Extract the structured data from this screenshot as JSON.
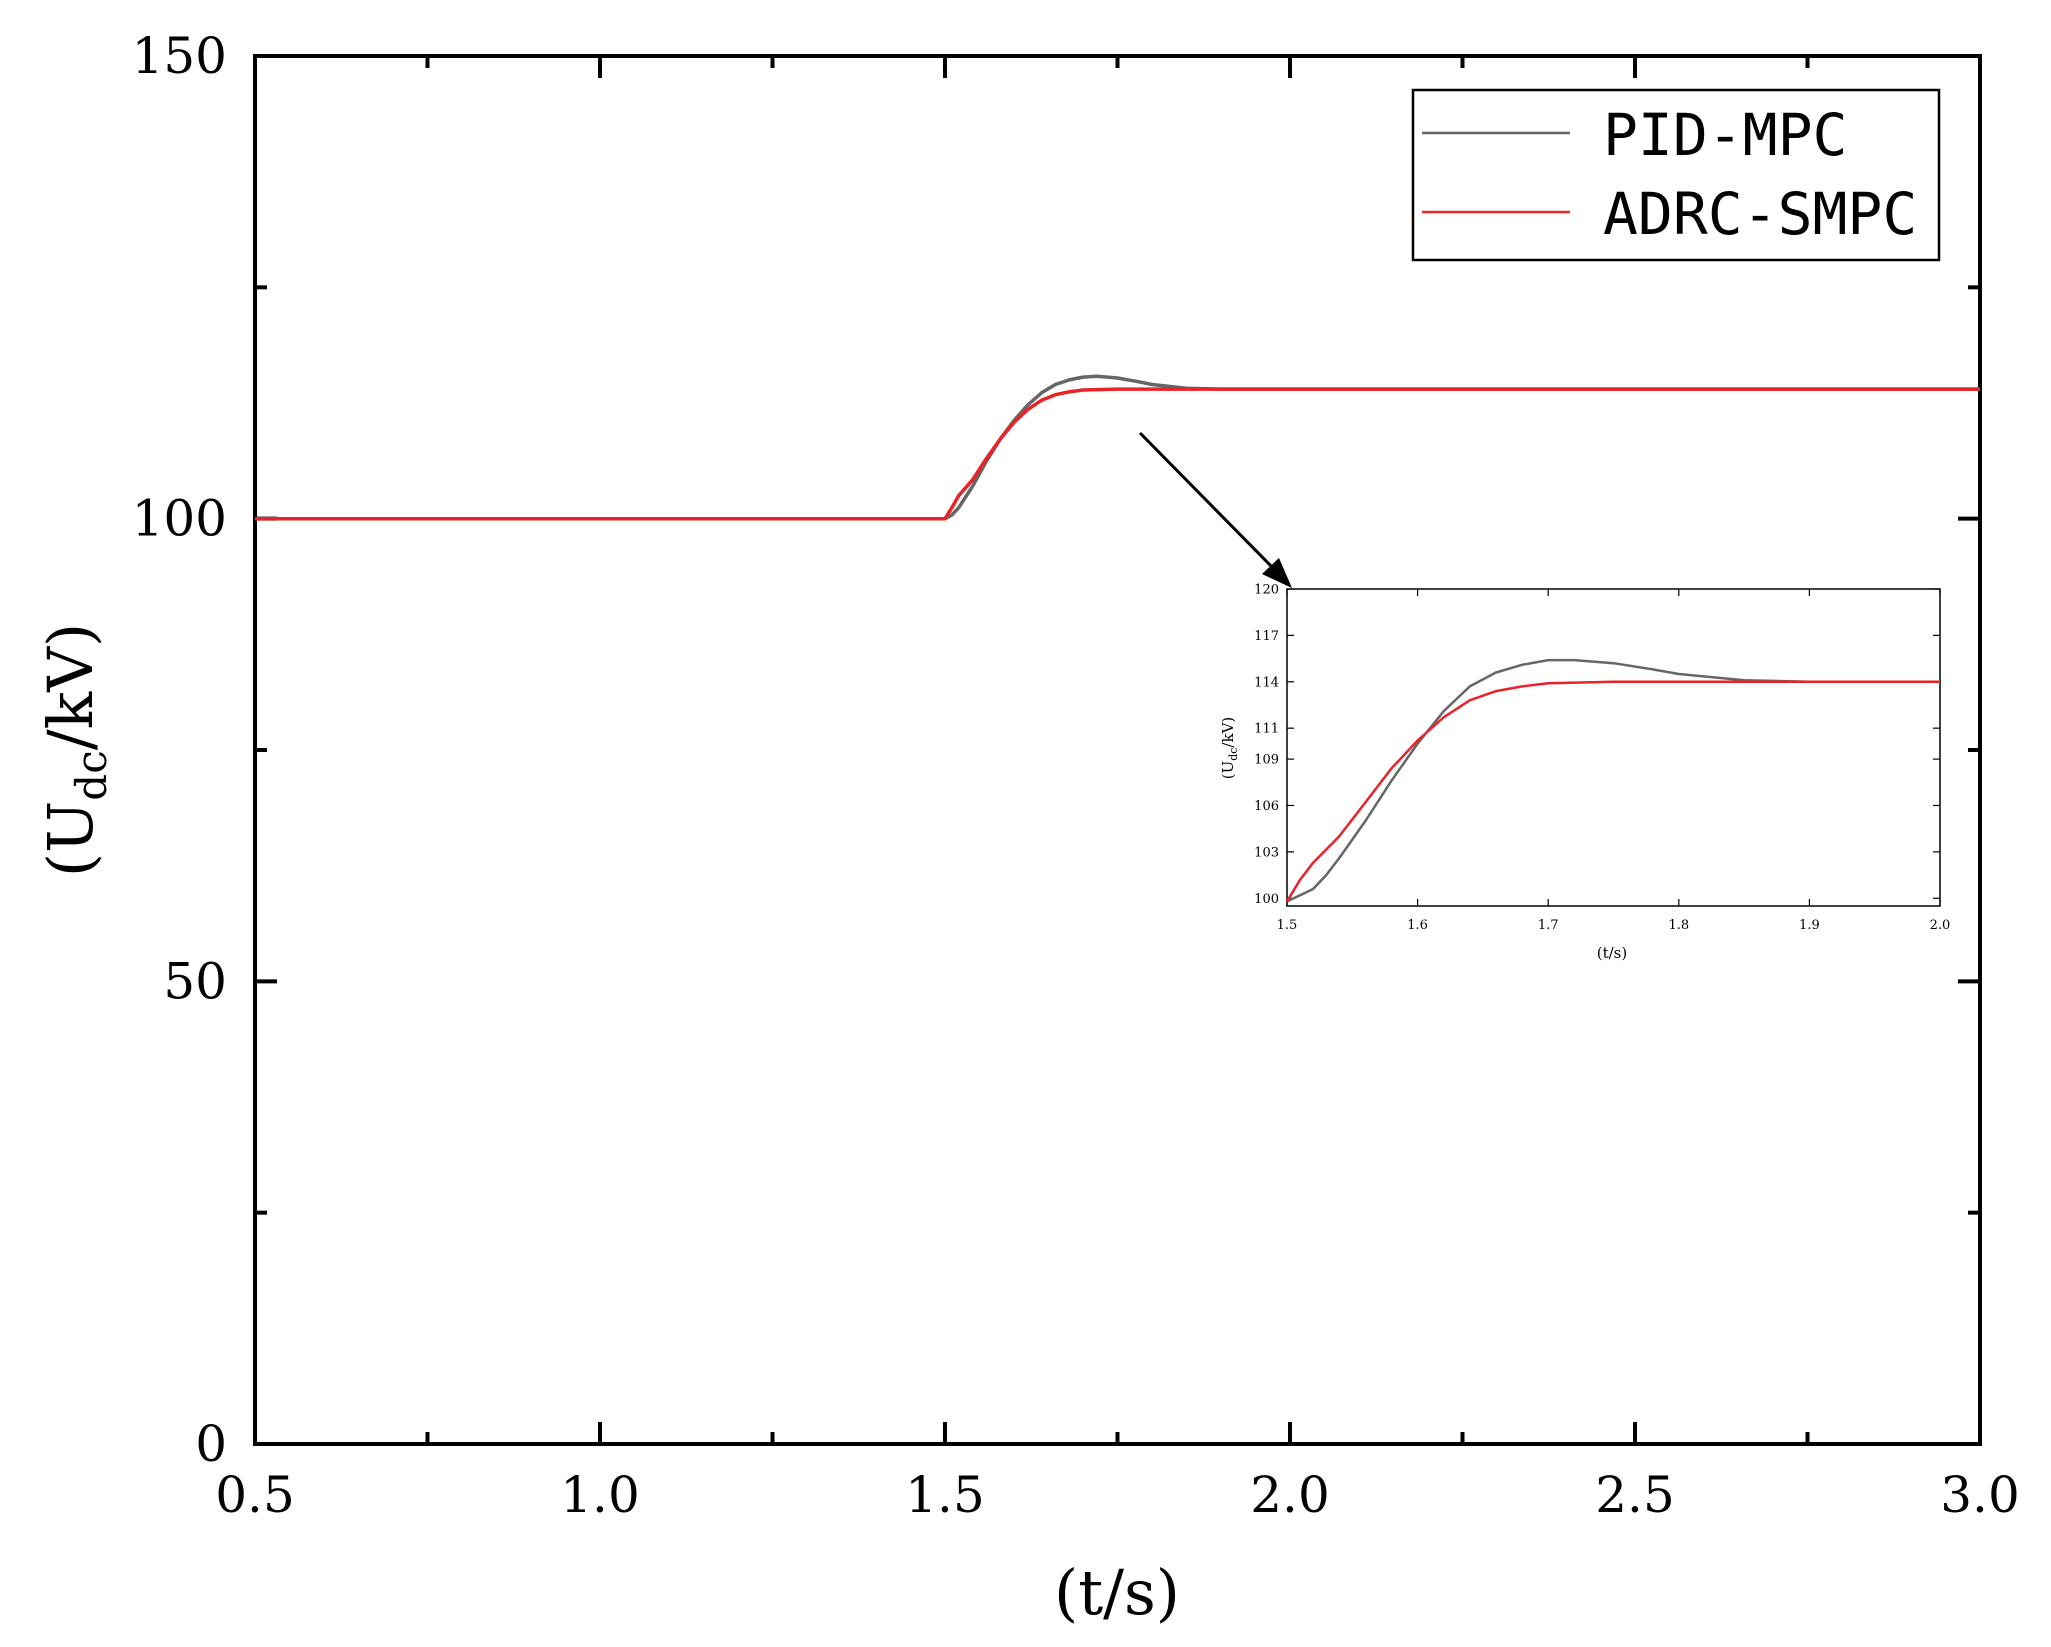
{
  "chart_data": [
    {
      "type": "line",
      "xlabel": "(t/s)",
      "ylabel_main": "(U",
      "ylabel_sub": "dc",
      "ylabel_tail": "/kV)",
      "xlim": [
        0.5,
        3.0
      ],
      "ylim": [
        0,
        150
      ],
      "x_ticks": [
        0.5,
        1.0,
        1.5,
        2.0,
        2.5,
        3.0
      ],
      "x_tick_labels": [
        "0.5",
        "1.0",
        "1.5",
        "2.0",
        "2.5",
        "3.0"
      ],
      "y_ticks": [
        0,
        50,
        100,
        150
      ],
      "y_tick_labels": [
        "0",
        "50",
        "100",
        "150"
      ],
      "y_minor_ticks": [
        25,
        75,
        125
      ],
      "x_minor_ticks": [
        0.75,
        1.25,
        1.75,
        2.25,
        2.75
      ],
      "grid": false,
      "legend_position": "top-right",
      "series": [
        {
          "name": "PID-MPC",
          "color": "#666666",
          "x": [
            0.5,
            1.5,
            1.51,
            1.52,
            1.54,
            1.56,
            1.58,
            1.6,
            1.62,
            1.64,
            1.66,
            1.68,
            1.7,
            1.72,
            1.75,
            1.78,
            1.8,
            1.85,
            1.9,
            2.0,
            2.5,
            3.0
          ],
          "y": [
            100,
            100,
            100.4,
            101.2,
            103.5,
            106.2,
            108.6,
            110.6,
            112.3,
            113.6,
            114.5,
            115.0,
            115.3,
            115.4,
            115.2,
            114.8,
            114.5,
            114.1,
            114.0,
            114.0,
            114.0,
            114.0
          ]
        },
        {
          "name": "ADRC-SMPC",
          "color": "#e8232a",
          "x": [
            0.5,
            1.5,
            1.51,
            1.52,
            1.54,
            1.56,
            1.58,
            1.6,
            1.62,
            1.64,
            1.66,
            1.68,
            1.7,
            1.75,
            1.8,
            1.9,
            2.0,
            2.5,
            3.0
          ],
          "y": [
            100,
            100,
            101.2,
            102.5,
            104.2,
            106.5,
            108.6,
            110.4,
            111.8,
            112.8,
            113.4,
            113.7,
            113.9,
            114.0,
            114.0,
            114.0,
            114.0,
            114.0,
            114.0
          ]
        }
      ]
    },
    {
      "type": "line",
      "role": "inset-zoom",
      "xlabel": "(t/s)",
      "ylabel_main": "(U",
      "ylabel_sub": "dc",
      "ylabel_tail": "/kV)",
      "xlim": [
        1.5,
        2.0
      ],
      "ylim": [
        99.5,
        120
      ],
      "x_ticks": [
        1.5,
        1.6,
        1.7,
        1.8,
        1.9,
        2.0
      ],
      "x_tick_labels": [
        "1.5",
        "1.6",
        "1.7",
        "1.8",
        "1.9",
        "2.0"
      ],
      "y_ticks": [
        100,
        103,
        106,
        109,
        111,
        114,
        117,
        120
      ],
      "y_tick_labels": [
        "100",
        "103",
        "106",
        "109",
        "111",
        "114",
        "117",
        "120"
      ],
      "grid": false,
      "series": [
        {
          "name": "PID-MPC",
          "color": "#666666",
          "x": [
            1.5,
            1.51,
            1.52,
            1.53,
            1.54,
            1.56,
            1.58,
            1.6,
            1.62,
            1.64,
            1.66,
            1.68,
            1.7,
            1.72,
            1.75,
            1.78,
            1.8,
            1.85,
            1.9,
            1.95,
            2.0
          ],
          "y": [
            99.8,
            100.2,
            100.6,
            101.5,
            102.6,
            105.0,
            107.6,
            110.0,
            112.1,
            113.7,
            114.6,
            115.1,
            115.4,
            115.4,
            115.2,
            114.8,
            114.5,
            114.1,
            114.0,
            114.0,
            114.0
          ]
        },
        {
          "name": "ADRC-SMPC",
          "color": "#e8232a",
          "x": [
            1.5,
            1.51,
            1.52,
            1.54,
            1.56,
            1.58,
            1.6,
            1.62,
            1.64,
            1.66,
            1.68,
            1.7,
            1.75,
            1.8,
            1.85,
            1.9,
            2.0
          ],
          "y": [
            99.8,
            101.2,
            102.3,
            104.0,
            106.2,
            108.4,
            110.2,
            111.7,
            112.8,
            113.4,
            113.7,
            113.9,
            114.0,
            114.0,
            114.0,
            114.0,
            114.0
          ]
        }
      ]
    }
  ]
}
